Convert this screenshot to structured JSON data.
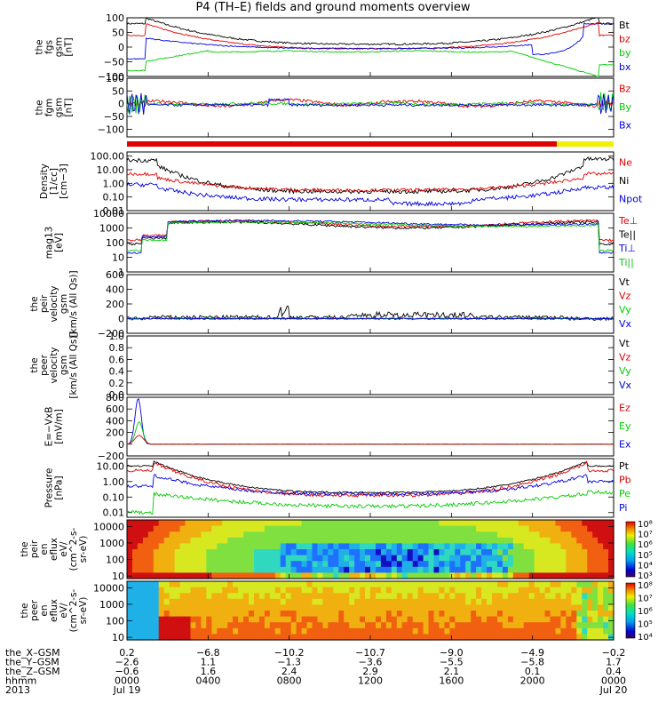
{
  "title": "P4 (TH–E) fields and ground moments overview",
  "colors": {
    "black": "#000000",
    "red": "#e00000",
    "green": "#00cc00",
    "blue": "#0000e0",
    "yellow": "#f0f000"
  },
  "chart_data": [
    {
      "id": "fgs",
      "type": "line",
      "ylabel": [
        "the",
        "fgs",
        "gsm",
        "[nT]"
      ],
      "yscale": "linear",
      "ylim": [
        -100,
        100
      ],
      "ticks": [
        "100",
        "50",
        "0",
        "−50",
        "−100"
      ],
      "tick_values": [
        100,
        50,
        0,
        -50,
        -100
      ],
      "legend": [
        {
          "name": "Bt",
          "color": "black"
        },
        {
          "name": "bz",
          "color": "red"
        },
        {
          "name": "by",
          "color": "green"
        },
        {
          "name": "bx",
          "color": "blue"
        }
      ]
    },
    {
      "id": "fgm",
      "type": "line",
      "ylabel": [
        "the",
        "fgm",
        "gsm",
        "[nT]"
      ],
      "yscale": "linear",
      "ylim": [
        -130,
        100
      ],
      "ticks": [
        "100",
        "50",
        "0",
        "−50",
        "−100"
      ],
      "tick_values": [
        100,
        50,
        0,
        -50,
        -100
      ],
      "legend": [
        {
          "name": "Bz",
          "color": "red"
        },
        {
          "name": "By",
          "color": "green"
        },
        {
          "name": "Bx",
          "color": "blue"
        }
      ]
    },
    {
      "id": "density",
      "type": "line",
      "ylabel": [
        "Density",
        "[1/cc]",
        "[cm−3]"
      ],
      "yscale": "log",
      "ylim": [
        0.01,
        200
      ],
      "ticks": [
        "100.00",
        "10.00",
        "1.00",
        "0.10",
        "0.01"
      ],
      "tick_values": [
        100,
        10,
        1,
        0.1,
        0.01
      ],
      "legend": [
        {
          "name": "Ne",
          "color": "red"
        },
        {
          "name": "Ni",
          "color": "black"
        },
        {
          "name": "Npot",
          "color": "blue"
        }
      ]
    },
    {
      "id": "temperature",
      "type": "line",
      "ylabel": [
        "mag13",
        "[eV]"
      ],
      "yscale": "log",
      "ylim": [
        1,
        10000
      ],
      "ticks": [
        "10000",
        "1000",
        "100",
        "10",
        "1"
      ],
      "tick_values": [
        10000,
        1000,
        100,
        10,
        1
      ],
      "legend": [
        {
          "name": "Te⊥",
          "color": "red"
        },
        {
          "name": "Te||",
          "color": "black"
        },
        {
          "name": "Ti⊥",
          "color": "blue"
        },
        {
          "name": "Ti||",
          "color": "green"
        }
      ]
    },
    {
      "id": "peir_velocity",
      "type": "line",
      "ylabel": [
        "the",
        "peir",
        "velocity",
        "gsm",
        "[km/s (All Qs)]"
      ],
      "yscale": "linear",
      "ylim": [
        -200,
        600
      ],
      "ticks": [
        "600",
        "400",
        "200",
        "0",
        "−200"
      ],
      "tick_values": [
        600,
        400,
        200,
        0,
        -200
      ],
      "legend": [
        {
          "name": "Vt",
          "color": "black"
        },
        {
          "name": "Vz",
          "color": "red"
        },
        {
          "name": "Vy",
          "color": "green"
        },
        {
          "name": "Vx",
          "color": "blue"
        }
      ]
    },
    {
      "id": "peer_velocity",
      "type": "line",
      "ylabel": [
        "the",
        "peer",
        "velocity",
        "gsm",
        "[km/s (All Qs)]"
      ],
      "yscale": "linear",
      "ylim": [
        0,
        1
      ],
      "ticks": [
        "1.0",
        "0.8",
        "0.6",
        "0.4",
        "0.2",
        "0.0"
      ],
      "tick_values": [
        1.0,
        0.8,
        0.6,
        0.4,
        0.2,
        0.0
      ],
      "legend": [
        {
          "name": "Vt",
          "color": "black"
        },
        {
          "name": "Vz",
          "color": "red"
        },
        {
          "name": "Vy",
          "color": "green"
        },
        {
          "name": "Vx",
          "color": "blue"
        }
      ]
    },
    {
      "id": "efield",
      "type": "line",
      "ylabel": [
        "E=−VxB",
        "[mV/m]"
      ],
      "yscale": "linear",
      "ylim": [
        -200,
        800
      ],
      "ticks": [
        "800",
        "600",
        "400",
        "200",
        "0",
        "−200"
      ],
      "tick_values": [
        800,
        600,
        400,
        200,
        0,
        -200
      ],
      "legend": [
        {
          "name": "Ez",
          "color": "red"
        },
        {
          "name": "Ey",
          "color": "green"
        },
        {
          "name": "Ex",
          "color": "blue"
        }
      ]
    },
    {
      "id": "pressure",
      "type": "line",
      "ylabel": [
        "Pressure",
        "[nPa]"
      ],
      "yscale": "log",
      "ylim": [
        0.005,
        30
      ],
      "ticks": [
        "10.00",
        "1.00",
        "0.10",
        "0.01"
      ],
      "tick_values": [
        10,
        1,
        0.1,
        0.01
      ],
      "legend": [
        {
          "name": "Pt",
          "color": "black"
        },
        {
          "name": "Pb",
          "color": "red"
        },
        {
          "name": "Pe",
          "color": "green"
        },
        {
          "name": "Pi",
          "color": "blue"
        }
      ]
    },
    {
      "id": "peir_spectrogram",
      "type": "heatmap",
      "ylabel": [
        "the",
        "peir",
        "en",
        "eflux",
        "eV/",
        "(cm^2-s-",
        "sr-eV)"
      ],
      "yscale": "log",
      "ylim": [
        7,
        25000
      ],
      "ticks": [
        "10000",
        "1000",
        "100",
        "10"
      ],
      "tick_values": [
        10000,
        1000,
        100,
        10
      ],
      "colorbar_ticks": [
        "10⁸",
        "10⁷",
        "10⁶",
        "10⁵",
        "10⁴",
        "10³"
      ],
      "colorbar_values": [
        8,
        7,
        6,
        5,
        4,
        3
      ]
    },
    {
      "id": "peer_spectrogram",
      "type": "heatmap",
      "ylabel": [
        "the",
        "peer",
        "en",
        "eflux",
        "eV/",
        "(cm^2-s-",
        "sr-eV)"
      ],
      "yscale": "log",
      "ylim": [
        7,
        25000
      ],
      "ticks": [
        "10000",
        "1000",
        "100",
        "10"
      ],
      "tick_values": [
        10000,
        1000,
        100,
        10
      ],
      "colorbar_ticks": [
        "10⁸",
        "10⁷",
        "10⁶",
        "10⁵",
        "10⁴"
      ],
      "colorbar_values": [
        8,
        7,
        6,
        5,
        4
      ]
    }
  ],
  "xaxis": {
    "row_labels": [
      "the_X–GSM",
      "the_Y–GSM",
      "the_Z–GSM",
      "hhmm",
      "2013"
    ],
    "hours": [
      0,
      4,
      8,
      12,
      16,
      20,
      24
    ],
    "columns": [
      [
        "0.2",
        "−2.6",
        "−0.6",
        "0000",
        "Jul 19"
      ],
      [
        "−6.8",
        "1.1",
        "1.6",
        "0400",
        ""
      ],
      [
        "−10.2",
        "−1.3",
        "2.4",
        "0800",
        ""
      ],
      [
        "−10.7",
        "−3.6",
        "2.9",
        "1200",
        ""
      ],
      [
        "−9.0",
        "−5.5",
        "2.1",
        "1600",
        ""
      ],
      [
        "−4.9",
        "−5.8",
        "0.1",
        "2000",
        ""
      ],
      [
        "−0.2",
        "1.7",
        "0.4",
        "0000",
        "Jul 20"
      ]
    ]
  }
}
